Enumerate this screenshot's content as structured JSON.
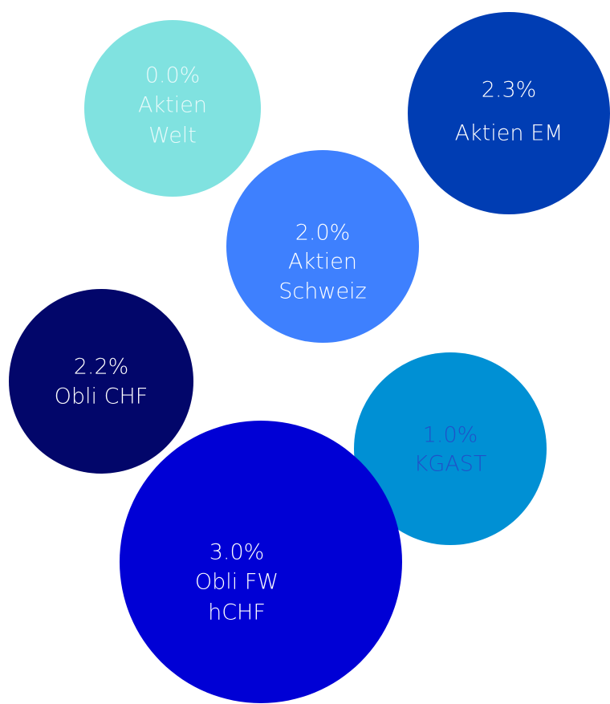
{
  "bubbles": [
    {
      "value": "0.0%",
      "label": [
        "Aktien",
        "Welt"
      ]
    },
    {
      "value": "2.3%",
      "label": [
        "Aktien EM"
      ]
    },
    {
      "value": "2.0%",
      "label": [
        "Aktien",
        "Schweiz"
      ]
    },
    {
      "value": "2.2%",
      "label": [
        "Obli CHF"
      ]
    },
    {
      "value": "1.0%",
      "label": [
        "KGAST"
      ]
    },
    {
      "value": "3.0%",
      "label": [
        "Obli FW",
        "hCHF"
      ]
    }
  ]
}
